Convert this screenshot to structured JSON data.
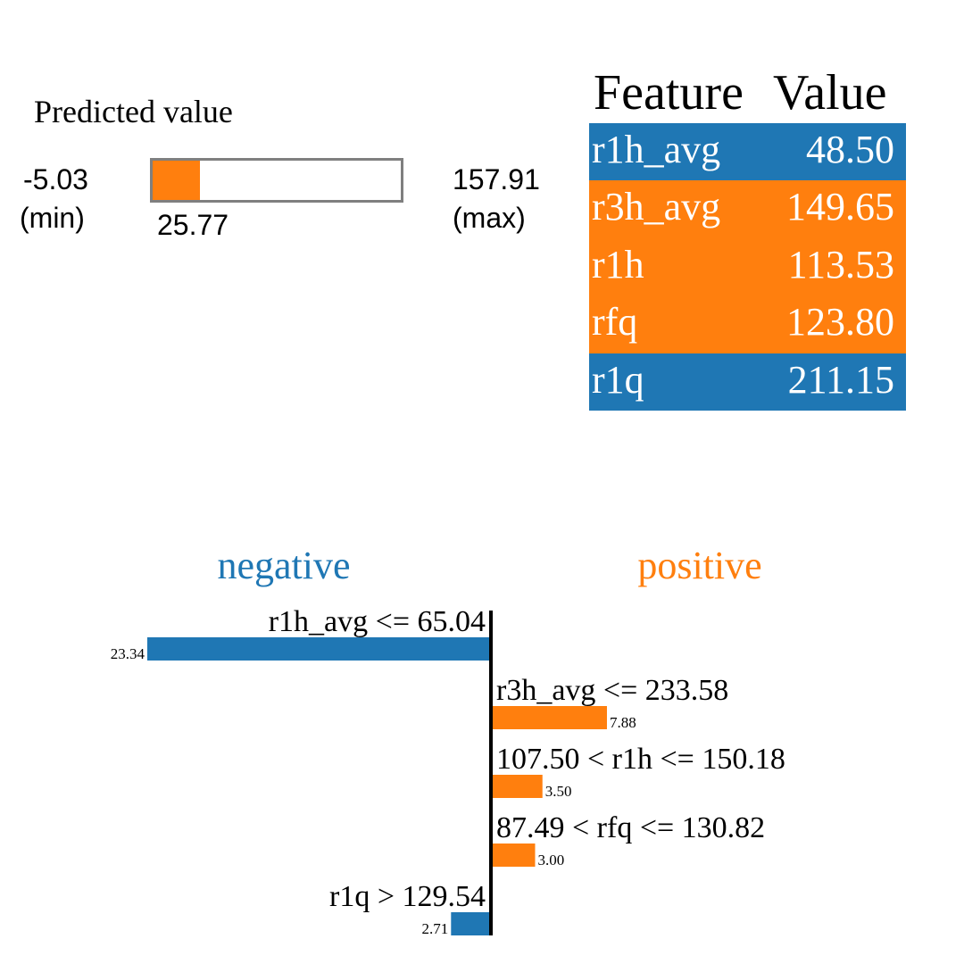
{
  "prediction": {
    "title": "Predicted value",
    "min_value": "-5.03",
    "min_tag": "(min)",
    "max_value": "157.91",
    "max_tag": "(max)",
    "current_value": "25.77",
    "min": -5.03,
    "max": 157.91,
    "value": 25.77,
    "bar_color": "#ff7f0e"
  },
  "feature_table": {
    "headers": [
      "Feature",
      "Value"
    ],
    "rows": [
      {
        "feature": "r1h_avg",
        "value": "48.50",
        "color": "#1f77b4"
      },
      {
        "feature": "r3h_avg",
        "value": "149.65",
        "color": "#ff7f0e"
      },
      {
        "feature": "r1h",
        "value": "113.53",
        "color": "#ff7f0e"
      },
      {
        "feature": "rfq",
        "value": "123.80",
        "color": "#ff7f0e"
      },
      {
        "feature": "r1q",
        "value": "211.15",
        "color": "#1f77b4"
      }
    ]
  },
  "chart_data": {
    "type": "bar",
    "orientation": "horizontal",
    "negative_label": "negative",
    "positive_label": "positive",
    "colors": {
      "negative": "#1f77b4",
      "positive": "#ff7f0e"
    },
    "categories": [
      "r1h_avg <= 65.04",
      "r3h_avg <= 233.58",
      "107.50 < r1h <= 150.18",
      "87.49 < rfq <= 130.82",
      "r1q > 129.54"
    ],
    "values": [
      -23.34,
      7.88,
      3.5,
      3.0,
      -2.71
    ],
    "value_labels": [
      "23.34",
      "7.88",
      "3.50",
      "3.00",
      "2.71"
    ],
    "xlim": [
      -23.34,
      23.34
    ]
  }
}
